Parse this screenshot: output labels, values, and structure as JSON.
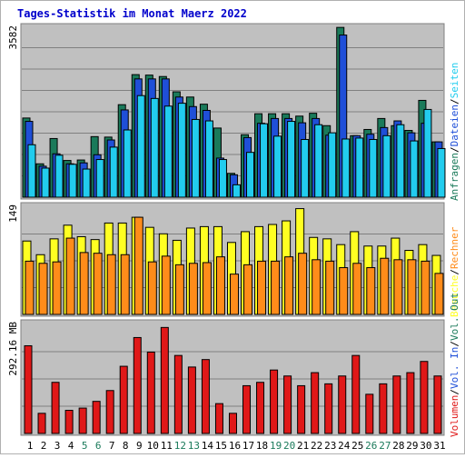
{
  "title": "Tages-Statistik im Monat Maerz 2022",
  "colors": {
    "title": "#0000cc",
    "panel_bg": "#c0c0c0",
    "grid": "#808080",
    "anfragen": "#1a7a5a",
    "dateien": "#1f4fd8",
    "seiten": "#22ccee",
    "besuche": "#ffff22",
    "rechner": "#ff8c1a",
    "volumen": "#e01818",
    "weekend_label": "#1a7a5a"
  },
  "chart_data": [
    {
      "type": "bar",
      "name": "requests",
      "ymax_label": "3582",
      "ymax": 3582,
      "categories": [
        "1",
        "2",
        "3",
        "4",
        "5",
        "6",
        "7",
        "8",
        "9",
        "10",
        "11",
        "12",
        "13",
        "14",
        "15",
        "16",
        "17",
        "18",
        "19",
        "20",
        "21",
        "22",
        "23",
        "24",
        "25",
        "26",
        "27",
        "28",
        "29",
        "30",
        "31"
      ],
      "legend": [
        {
          "label": "Anfragen",
          "color": "#1a7a5a"
        },
        {
          "label": "Dateien",
          "color": "#1f4fd8"
        },
        {
          "label": "Seiten",
          "color": "#22ccee"
        }
      ],
      "legend_separator": "/",
      "series": [
        {
          "name": "Anfragen",
          "values": [
            1660,
            700,
            1230,
            770,
            780,
            1270,
            1260,
            1940,
            2570,
            2560,
            2530,
            2210,
            2100,
            1950,
            1450,
            500,
            1310,
            1750,
            1750,
            1750,
            1700,
            1760,
            1500,
            3560,
            1290,
            1420,
            1650,
            1500,
            1400,
            2030,
            1160
          ]
        },
        {
          "name": "Dateien",
          "values": [
            1590,
            650,
            910,
            700,
            720,
            890,
            1200,
            1830,
            2480,
            2480,
            2480,
            2100,
            1900,
            1820,
            820,
            470,
            1250,
            1550,
            1650,
            1650,
            1560,
            1650,
            1300,
            3400,
            1290,
            1320,
            1460,
            1600,
            1350,
            1550,
            1160
          ]
        },
        {
          "name": "Seiten",
          "values": [
            1100,
            610,
            880,
            690,
            590,
            790,
            1050,
            1410,
            2130,
            2070,
            1910,
            1970,
            1630,
            1600,
            790,
            260,
            940,
            1540,
            1280,
            1590,
            1210,
            1520,
            1350,
            1220,
            1240,
            1210,
            1290,
            1520,
            1180,
            1840,
            1020
          ]
        }
      ]
    },
    {
      "type": "bar",
      "name": "visits",
      "ymax_label": "149",
      "ymax": 149,
      "categories": [
        "1",
        "2",
        "3",
        "4",
        "5",
        "6",
        "7",
        "8",
        "9",
        "10",
        "11",
        "12",
        "13",
        "14",
        "15",
        "16",
        "17",
        "18",
        "19",
        "20",
        "21",
        "22",
        "23",
        "24",
        "25",
        "26",
        "27",
        "28",
        "29",
        "30",
        "31"
      ],
      "legend": [
        {
          "label": "Besuche",
          "color": "#ffff22"
        },
        {
          "label": "Rechner",
          "color": "#ff8c1a"
        }
      ],
      "legend_separator": "/",
      "series": [
        {
          "name": "Besuche",
          "values": [
            102,
            83,
            105,
            124,
            108,
            104,
            127,
            127,
            135,
            121,
            112,
            103,
            120,
            122,
            122,
            100,
            115,
            122,
            125,
            130,
            147,
            107,
            105,
            97,
            115,
            95,
            95,
            106,
            89,
            97,
            82
          ]
        },
        {
          "name": "Rechner",
          "values": [
            74,
            71,
            73,
            106,
            86,
            85,
            83,
            83,
            135,
            73,
            81,
            69,
            71,
            72,
            80,
            56,
            69,
            74,
            74,
            80,
            85,
            76,
            74,
            65,
            71,
            65,
            78,
            76,
            76,
            74,
            57
          ]
        }
      ]
    },
    {
      "type": "bar",
      "name": "volume",
      "ymax_label": "292.16 MB",
      "ymax": 292.16,
      "unit": "MB",
      "categories": [
        "1",
        "2",
        "3",
        "4",
        "5",
        "6",
        "7",
        "8",
        "9",
        "10",
        "11",
        "12",
        "13",
        "14",
        "15",
        "16",
        "17",
        "18",
        "19",
        "20",
        "21",
        "22",
        "23",
        "24",
        "25",
        "26",
        "27",
        "28",
        "29",
        "30",
        "31"
      ],
      "legend": [
        {
          "label": "Volumen",
          "color": "#e01818"
        },
        {
          "label": "Vol. In",
          "color": "#1f4fd8"
        },
        {
          "label": "Vol. Out",
          "color": "#1a7a5a"
        }
      ],
      "legend_separator": "/",
      "series": [
        {
          "name": "Volumen",
          "values": [
            235,
            54,
            137,
            62,
            68,
            86,
            115,
            180,
            257,
            218,
            284,
            209,
            178,
            198,
            80,
            54,
            128,
            137,
            170,
            154,
            128,
            163,
            133,
            154,
            209,
            105,
            133,
            154,
            163,
            193,
            154
          ]
        }
      ]
    }
  ],
  "x_labels": [
    {
      "text": "1",
      "weekend": false
    },
    {
      "text": "2",
      "weekend": false
    },
    {
      "text": "3",
      "weekend": false
    },
    {
      "text": "4",
      "weekend": false
    },
    {
      "text": "5",
      "weekend": true
    },
    {
      "text": "6",
      "weekend": true
    },
    {
      "text": "7",
      "weekend": false
    },
    {
      "text": "8",
      "weekend": false
    },
    {
      "text": "9",
      "weekend": false
    },
    {
      "text": "10",
      "weekend": false
    },
    {
      "text": "11",
      "weekend": false
    },
    {
      "text": "12",
      "weekend": true
    },
    {
      "text": "13",
      "weekend": true
    },
    {
      "text": "14",
      "weekend": false
    },
    {
      "text": "15",
      "weekend": false
    },
    {
      "text": "16",
      "weekend": false
    },
    {
      "text": "17",
      "weekend": false
    },
    {
      "text": "18",
      "weekend": false
    },
    {
      "text": "19",
      "weekend": true
    },
    {
      "text": "20",
      "weekend": true
    },
    {
      "text": "21",
      "weekend": false
    },
    {
      "text": "22",
      "weekend": false
    },
    {
      "text": "23",
      "weekend": false
    },
    {
      "text": "24",
      "weekend": false
    },
    {
      "text": "25",
      "weekend": false
    },
    {
      "text": "26",
      "weekend": true
    },
    {
      "text": "27",
      "weekend": true
    },
    {
      "text": "28",
      "weekend": false
    },
    {
      "text": "29",
      "weekend": false
    },
    {
      "text": "30",
      "weekend": false
    },
    {
      "text": "31",
      "weekend": false
    }
  ]
}
